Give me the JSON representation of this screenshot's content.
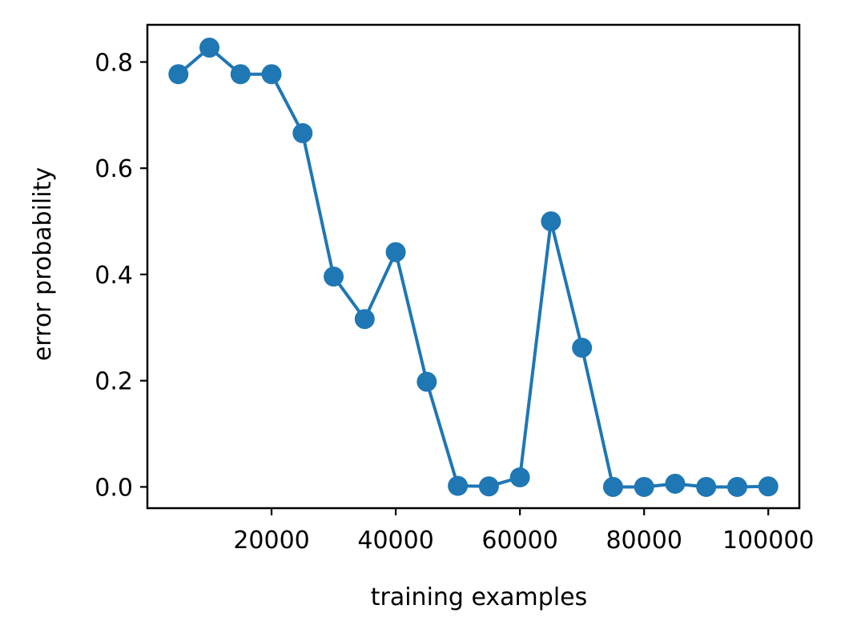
{
  "chart_data": {
    "type": "line",
    "xlabel": "training examples",
    "ylabel": "error probability",
    "xlim": [
      0,
      105000
    ],
    "ylim": [
      -0.04,
      0.87
    ],
    "xticks": [
      {
        "value": 20000,
        "label": "20000"
      },
      {
        "value": 40000,
        "label": "40000"
      },
      {
        "value": 60000,
        "label": "60000"
      },
      {
        "value": 80000,
        "label": "80000"
      },
      {
        "value": 100000,
        "label": "100000"
      }
    ],
    "yticks": [
      {
        "value": 0.0,
        "label": "0.0"
      },
      {
        "value": 0.2,
        "label": "0.2"
      },
      {
        "value": 0.4,
        "label": "0.4"
      },
      {
        "value": 0.6,
        "label": "0.6"
      },
      {
        "value": 0.8,
        "label": "0.8"
      }
    ],
    "grid": false,
    "series": [
      {
        "color": "#1f77b4",
        "marker": "circle",
        "x": [
          5000,
          10000,
          15000,
          20000,
          25000,
          30000,
          35000,
          40000,
          45000,
          50000,
          55000,
          60000,
          65000,
          70000,
          75000,
          80000,
          85000,
          90000,
          95000,
          100000
        ],
        "y": [
          0.777,
          0.827,
          0.777,
          0.777,
          0.666,
          0.396,
          0.316,
          0.442,
          0.198,
          0.002,
          0.001,
          0.018,
          0.5,
          0.262,
          0.0,
          0.0,
          0.006,
          0.0,
          0.0,
          0.001
        ]
      }
    ]
  }
}
